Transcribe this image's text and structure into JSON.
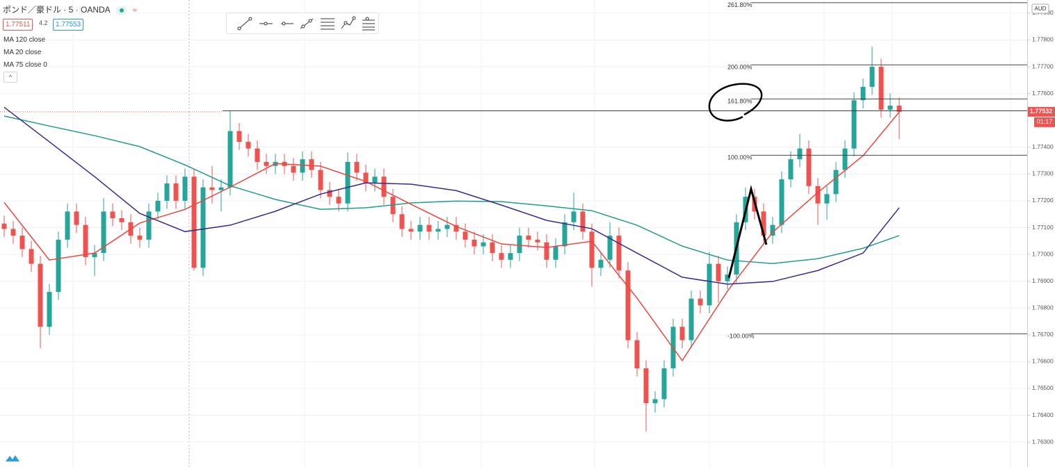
{
  "chart_data": {
    "type": "candlestick",
    "title": "ポンド／豪ドル · 5 · OANDA",
    "bid": 1.77511,
    "spread": 4.2,
    "ask": 1.77553,
    "currency": "AUD",
    "up_color": "#26a69a",
    "down_color": "#ef5350",
    "open": [
      1.77115,
      1.77095,
      1.7707,
      1.7702,
      1.76965,
      1.7673,
      1.7686,
      1.77055,
      1.7716,
      1.7711,
      1.7699,
      1.77005,
      1.7716,
      1.77135,
      1.7712,
      1.7707,
      1.77055,
      1.7716,
      1.772,
      1.77265,
      1.772,
      1.7729,
      1.7695,
      1.7725,
      1.7724,
      1.7725,
      1.7746,
      1.7742,
      1.77395,
      1.77345,
      1.7733,
      1.77345,
      1.7733,
      1.77305,
      1.77355,
      1.77315,
      1.7724,
      1.77215,
      1.7719,
      1.77345,
      1.77305,
      1.77265,
      1.7729,
      1.77215,
      1.7715,
      1.77095,
      1.77085,
      1.7711,
      1.77085,
      1.77095,
      1.7711,
      1.77085,
      1.77055,
      1.7703,
      1.77045,
      1.77005,
      1.7698,
      1.77005,
      1.7707,
      1.77055,
      1.77045,
      1.7698,
      1.7703,
      1.7712,
      1.7716,
      1.77085,
      1.7695,
      1.7698,
      1.7707,
      1.7694,
      1.7668,
      1.76575,
      1.76445,
      1.7646,
      1.76575,
      1.7673,
      1.7668,
      1.76835,
      1.7681,
      1.76965,
      1.769,
      1.76925,
      1.7712,
      1.77215,
      1.7716,
      1.7707,
      1.7711,
      1.7728,
      1.77355,
      1.77395,
      1.77255,
      1.7719,
      1.77225,
      1.77315,
      1.77395,
      1.77575,
      1.77625,
      1.777,
      1.7754,
      1.77555
    ],
    "high": [
      1.77145,
      1.77125,
      1.771,
      1.7705,
      1.76995,
      1.7689,
      1.77085,
      1.7719,
      1.7719,
      1.7714,
      1.77035,
      1.7721,
      1.7719,
      1.77165,
      1.7715,
      1.771,
      1.7719,
      1.7723,
      1.77295,
      1.77295,
      1.7732,
      1.7732,
      1.7728,
      1.7733,
      1.7728,
      1.77535,
      1.7749,
      1.7745,
      1.77425,
      1.77375,
      1.77375,
      1.77375,
      1.7736,
      1.77385,
      1.77385,
      1.77345,
      1.7727,
      1.77245,
      1.7738,
      1.77375,
      1.77335,
      1.7732,
      1.7732,
      1.77245,
      1.7718,
      1.77125,
      1.7714,
      1.7714,
      1.77125,
      1.7714,
      1.7714,
      1.77115,
      1.77085,
      1.77075,
      1.77075,
      1.77035,
      1.77035,
      1.771,
      1.771,
      1.77085,
      1.77075,
      1.7706,
      1.7715,
      1.7723,
      1.7719,
      1.77115,
      1.7701,
      1.7712,
      1.771,
      1.7697,
      1.7671,
      1.76605,
      1.7649,
      1.76605,
      1.7676,
      1.7676,
      1.76865,
      1.76865,
      1.7701,
      1.76995,
      1.76955,
      1.7715,
      1.7725,
      1.77245,
      1.7719,
      1.7714,
      1.7731,
      1.77385,
      1.7745,
      1.77425,
      1.77285,
      1.77255,
      1.77345,
      1.77425,
      1.77605,
      1.77655,
      1.77775,
      1.7773,
      1.776,
      1.77585
    ],
    "low": [
      1.77065,
      1.7704,
      1.7699,
      1.76935,
      1.7665,
      1.767,
      1.7683,
      1.77025,
      1.7708,
      1.7696,
      1.7692,
      1.76975,
      1.77105,
      1.7709,
      1.7704,
      1.77025,
      1.77025,
      1.7713,
      1.7717,
      1.7717,
      1.7717,
      1.7694,
      1.7692,
      1.7719,
      1.7716,
      1.7722,
      1.7739,
      1.77365,
      1.77315,
      1.773,
      1.773,
      1.773,
      1.77275,
      1.77275,
      1.77285,
      1.7721,
      1.77185,
      1.7716,
      1.7716,
      1.77275,
      1.77235,
      1.77235,
      1.77185,
      1.7712,
      1.77065,
      1.77055,
      1.77055,
      1.77055,
      1.77055,
      1.77065,
      1.77055,
      1.77025,
      1.77,
      1.77,
      1.76975,
      1.7695,
      1.7695,
      1.76975,
      1.77025,
      1.77015,
      1.7695,
      1.7695,
      1.77,
      1.7709,
      1.77055,
      1.7688,
      1.7692,
      1.7695,
      1.7691,
      1.7665,
      1.76545,
      1.7634,
      1.7641,
      1.7643,
      1.76545,
      1.7665,
      1.7665,
      1.7678,
      1.7678,
      1.7682,
      1.7687,
      1.76895,
      1.7709,
      1.7713,
      1.7704,
      1.7704,
      1.7708,
      1.7725,
      1.77325,
      1.77225,
      1.7711,
      1.7713,
      1.77195,
      1.77285,
      1.77365,
      1.77545,
      1.77595,
      1.7751,
      1.7751,
      1.7743
    ],
    "close": [
      1.77095,
      1.7707,
      1.7702,
      1.76965,
      1.7673,
      1.7686,
      1.77055,
      1.7716,
      1.7711,
      1.7699,
      1.77005,
      1.7716,
      1.77135,
      1.7712,
      1.7707,
      1.77055,
      1.7716,
      1.772,
      1.77265,
      1.772,
      1.7729,
      1.7695,
      1.7725,
      1.7724,
      1.7725,
      1.7746,
      1.7742,
      1.77395,
      1.77345,
      1.7733,
      1.77345,
      1.7733,
      1.77305,
      1.77355,
      1.77315,
      1.7724,
      1.77215,
      1.7719,
      1.77345,
      1.77305,
      1.77265,
      1.7729,
      1.77215,
      1.7715,
      1.77095,
      1.77085,
      1.7711,
      1.77085,
      1.77095,
      1.7711,
      1.77085,
      1.77055,
      1.7703,
      1.77045,
      1.77005,
      1.7698,
      1.77005,
      1.7707,
      1.77055,
      1.77045,
      1.7698,
      1.7703,
      1.7712,
      1.7716,
      1.77085,
      1.7695,
      1.7698,
      1.7707,
      1.7694,
      1.7668,
      1.76575,
      1.76445,
      1.7646,
      1.76575,
      1.7673,
      1.7668,
      1.76835,
      1.7681,
      1.76965,
      1.769,
      1.76925,
      1.7712,
      1.77215,
      1.7716,
      1.7707,
      1.7711,
      1.7728,
      1.77355,
      1.77395,
      1.77255,
      1.7719,
      1.77225,
      1.77315,
      1.77395,
      1.77575,
      1.77625,
      1.777,
      1.7754,
      1.77555,
      1.77532
    ],
    "series": [
      {
        "name": "MA 120 close",
        "color": "#1f9c8b",
        "x": [
          0,
          5,
          10,
          15,
          20,
          25,
          30,
          35,
          40,
          45,
          50,
          55,
          60,
          65,
          70,
          75,
          80,
          85,
          90,
          95,
          99
        ],
        "values": [
          1.77516,
          1.77479,
          1.77443,
          1.77402,
          1.77334,
          1.77256,
          1.77205,
          1.77168,
          1.77174,
          1.77192,
          1.77199,
          1.77197,
          1.77181,
          1.77163,
          1.77109,
          1.77031,
          1.76979,
          1.76966,
          1.76984,
          1.77023,
          1.7707
        ]
      },
      {
        "name": "MA 20 close",
        "color": "#f0453a",
        "x": [
          0,
          5,
          10,
          15,
          20,
          25,
          30,
          35,
          40,
          45,
          50,
          55,
          60,
          65,
          70,
          75,
          80,
          85,
          90,
          95,
          99
        ],
        "values": [
          1.77194,
          1.76979,
          1.77005,
          1.77117,
          1.77168,
          1.77251,
          1.77339,
          1.77329,
          1.77272,
          1.77187,
          1.77104,
          1.77039,
          1.77026,
          1.77049,
          1.76837,
          1.76604,
          1.76863,
          1.77083,
          1.77231,
          1.77368,
          1.77531
        ]
      },
      {
        "name": "MA 75 close 0",
        "color": "#37298f",
        "x": [
          0,
          5,
          10,
          15,
          20,
          25,
          30,
          35,
          40,
          45,
          50,
          55,
          60,
          65,
          70,
          75,
          80,
          85,
          90,
          95,
          99
        ],
        "values": [
          1.77549,
          1.7742,
          1.7729,
          1.77153,
          1.77085,
          1.77109,
          1.77161,
          1.77225,
          1.77267,
          1.77262,
          1.77238,
          1.77184,
          1.77127,
          1.77096,
          1.77005,
          1.76915,
          1.76889,
          1.76899,
          1.7694,
          1.77005,
          1.77174
        ]
      }
    ],
    "ylim": [
      1.76207,
      1.77949
    ],
    "yticks": [
      {
        "value": 1.763,
        "label": "1.76300"
      },
      {
        "value": 1.764,
        "label": "1.76400"
      },
      {
        "value": 1.765,
        "label": "1.76500"
      },
      {
        "value": 1.766,
        "label": "1.76600"
      },
      {
        "value": 1.767,
        "label": "1.76700"
      },
      {
        "value": 1.768,
        "label": "1.76800"
      },
      {
        "value": 1.769,
        "label": "1.76900"
      },
      {
        "value": 1.77,
        "label": "1.77000"
      },
      {
        "value": 1.771,
        "label": "1.77100"
      },
      {
        "value": 1.772,
        "label": "1.77200"
      },
      {
        "value": 1.773,
        "label": "1.77300"
      },
      {
        "value": 1.774,
        "label": "1.77400"
      },
      {
        "value": 1.776,
        "label": "1.77600"
      },
      {
        "value": 1.777,
        "label": "1.77700"
      },
      {
        "value": 1.778,
        "label": "1.77800"
      },
      {
        "value": 1.779,
        "label": "1.77900"
      }
    ],
    "grid": true,
    "fib_levels": [
      {
        "value": 1.77939,
        "label": "261.80%"
      },
      {
        "value": 1.77707,
        "label": "200.00%"
      },
      {
        "value": 1.7758,
        "label": "161.80%"
      },
      {
        "value": 1.7737,
        "label": "100.00%"
      },
      {
        "value": 1.76704,
        "label": "-100.00%"
      }
    ],
    "horizontal_line": 1.77536,
    "last_price": 1.77532,
    "countdown": "01:17"
  }
}
